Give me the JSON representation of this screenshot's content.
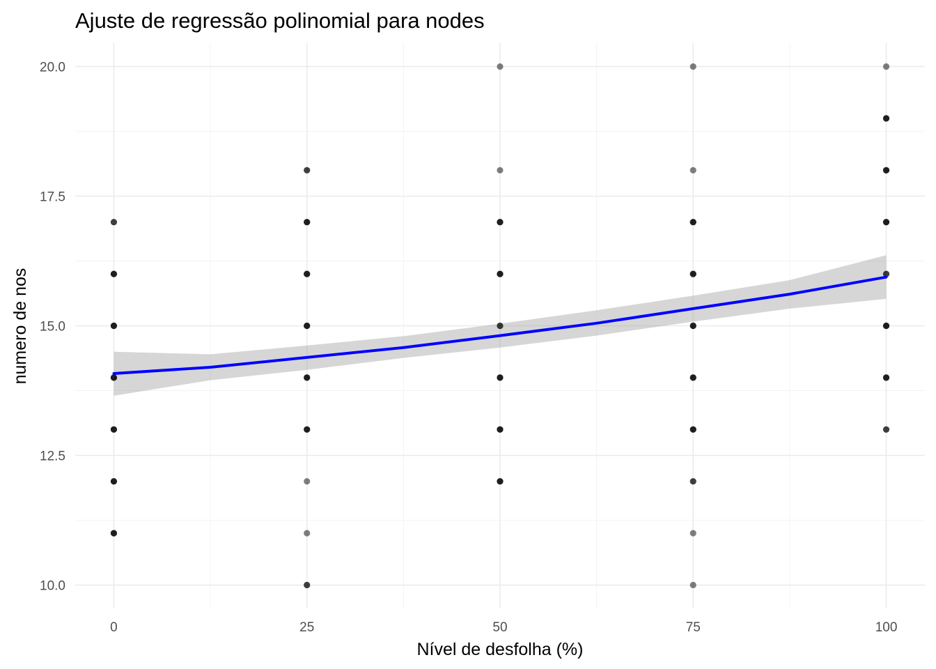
{
  "chart_data": {
    "type": "scatter",
    "title": "Ajuste de regressão polinomial para nodes",
    "xlabel": "Nível de desfolha (%)",
    "ylabel": "numero de nos",
    "xlim": [
      -5,
      105
    ],
    "ylim": [
      9.55,
      20.45
    ],
    "x_ticks": [
      0,
      25,
      50,
      75,
      100
    ],
    "x_tick_labels": [
      "0",
      "25",
      "50",
      "75",
      "100"
    ],
    "y_ticks": [
      10,
      12.5,
      15,
      17.5,
      20
    ],
    "y_tick_labels": [
      "10.0",
      "12.5",
      "15.0",
      "17.5",
      "20.0"
    ],
    "grid": true,
    "point_color": "#000000",
    "point_opacity": 0.5,
    "fit_color": "#0000ff",
    "band_color": "#999999",
    "points": [
      {
        "x": 0,
        "y": 11,
        "count": 3
      },
      {
        "x": 0,
        "y": 12,
        "count": 3
      },
      {
        "x": 0,
        "y": 13,
        "count": 3
      },
      {
        "x": 0,
        "y": 14,
        "count": 3
      },
      {
        "x": 0,
        "y": 15,
        "count": 3
      },
      {
        "x": 0,
        "y": 16,
        "count": 3
      },
      {
        "x": 0,
        "y": 17,
        "count": 2
      },
      {
        "x": 25,
        "y": 10,
        "count": 2
      },
      {
        "x": 25,
        "y": 11,
        "count": 1
      },
      {
        "x": 25,
        "y": 12,
        "count": 1
      },
      {
        "x": 25,
        "y": 13,
        "count": 3
      },
      {
        "x": 25,
        "y": 14,
        "count": 3
      },
      {
        "x": 25,
        "y": 15,
        "count": 3
      },
      {
        "x": 25,
        "y": 16,
        "count": 3
      },
      {
        "x": 25,
        "y": 17,
        "count": 3
      },
      {
        "x": 25,
        "y": 18,
        "count": 2
      },
      {
        "x": 50,
        "y": 12,
        "count": 3
      },
      {
        "x": 50,
        "y": 13,
        "count": 3
      },
      {
        "x": 50,
        "y": 14,
        "count": 3
      },
      {
        "x": 50,
        "y": 15,
        "count": 2
      },
      {
        "x": 50,
        "y": 16,
        "count": 3
      },
      {
        "x": 50,
        "y": 17,
        "count": 3
      },
      {
        "x": 50,
        "y": 18,
        "count": 1
      },
      {
        "x": 50,
        "y": 20,
        "count": 1
      },
      {
        "x": 75,
        "y": 10,
        "count": 1
      },
      {
        "x": 75,
        "y": 11,
        "count": 1
      },
      {
        "x": 75,
        "y": 12,
        "count": 2
      },
      {
        "x": 75,
        "y": 13,
        "count": 3
      },
      {
        "x": 75,
        "y": 14,
        "count": 3
      },
      {
        "x": 75,
        "y": 15,
        "count": 3
      },
      {
        "x": 75,
        "y": 16,
        "count": 3
      },
      {
        "x": 75,
        "y": 17,
        "count": 3
      },
      {
        "x": 75,
        "y": 18,
        "count": 1
      },
      {
        "x": 75,
        "y": 20,
        "count": 1
      },
      {
        "x": 100,
        "y": 13,
        "count": 2
      },
      {
        "x": 100,
        "y": 14,
        "count": 3
      },
      {
        "x": 100,
        "y": 15,
        "count": 3
      },
      {
        "x": 100,
        "y": 16,
        "count": 2
      },
      {
        "x": 100,
        "y": 17,
        "count": 3
      },
      {
        "x": 100,
        "y": 18,
        "count": 3
      },
      {
        "x": 100,
        "y": 19,
        "count": 3
      },
      {
        "x": 100,
        "y": 20,
        "count": 1
      }
    ],
    "fit": {
      "x": [
        0,
        12.5,
        25,
        37.5,
        50,
        62.5,
        75,
        87.5,
        100
      ],
      "y": [
        14.08,
        14.2,
        14.39,
        14.58,
        14.81,
        15.05,
        15.33,
        15.61,
        15.94
      ],
      "lower": [
        13.65,
        13.95,
        14.15,
        14.38,
        14.58,
        14.81,
        15.08,
        15.33,
        15.52
      ],
      "upper": [
        14.5,
        14.45,
        14.62,
        14.8,
        15.04,
        15.3,
        15.58,
        15.88,
        16.36
      ]
    }
  }
}
